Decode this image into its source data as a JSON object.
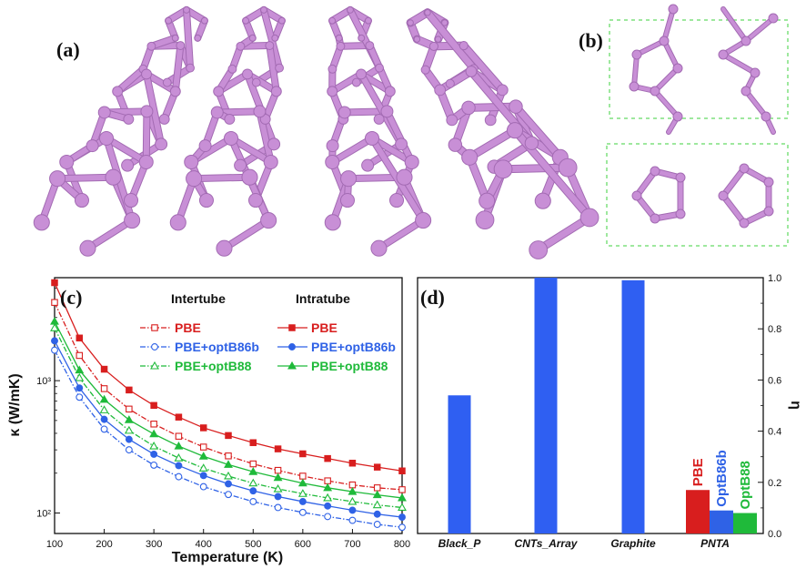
{
  "panels": {
    "a": "(a)",
    "b": "(b)",
    "c": "(c)",
    "d": "(d)"
  },
  "colors": {
    "molecule": "#c88fd6",
    "molecule_dark": "#a36bb3",
    "dashed_box": "#7fe07f",
    "red": "#d81e1e",
    "blue": "#2f62e6",
    "green": "#1fba3a",
    "bar_blue": "#2f5ff2"
  },
  "chart_data": [
    {
      "type": "line",
      "panel": "(c)",
      "xlabel": "Temperature (K)",
      "ylabel": "κ (W/mK)",
      "yscale": "log",
      "xlim": [
        100,
        800
      ],
      "ylim": [
        70,
        6000
      ],
      "xticks": [
        100,
        200,
        300,
        400,
        500,
        600,
        700,
        800
      ],
      "yticks": [
        {
          "value": 100,
          "label": "10²"
        },
        {
          "value": 1000,
          "label": "10³"
        }
      ],
      "legend_headers": [
        "Intertube",
        "Intratube"
      ],
      "x": [
        100,
        150,
        200,
        250,
        300,
        350,
        400,
        450,
        500,
        550,
        600,
        650,
        700,
        750,
        800
      ],
      "series": [
        {
          "name": "PBE",
          "group": "Intertube",
          "color": "#d81e1e",
          "style": "dashdot",
          "marker": "square-open",
          "values": [
            3900,
            1550,
            870,
            610,
            470,
            380,
            315,
            270,
            235,
            210,
            190,
            175,
            163,
            155,
            150
          ]
        },
        {
          "name": "PBE+optB86b",
          "group": "Intertube",
          "color": "#2f62e6",
          "style": "dashdot",
          "marker": "circle-open",
          "values": [
            1700,
            750,
            430,
            300,
            230,
            188,
            158,
            138,
            122,
            110,
            101,
            94,
            88,
            82,
            78
          ]
        },
        {
          "name": "PBE+optB88",
          "group": "Intertube",
          "color": "#1fba3a",
          "style": "dashdot",
          "marker": "triangle-open",
          "values": [
            2500,
            1050,
            600,
            420,
            320,
            260,
            218,
            190,
            168,
            152,
            140,
            130,
            122,
            115,
            110
          ]
        },
        {
          "name": "PBE",
          "group": "Intratube",
          "color": "#d81e1e",
          "style": "solid",
          "marker": "square-filled",
          "values": [
            5500,
            2100,
            1220,
            850,
            650,
            530,
            440,
            385,
            340,
            305,
            280,
            258,
            238,
            222,
            208
          ]
        },
        {
          "name": "PBE+optB86b",
          "group": "Intratube",
          "color": "#2f62e6",
          "style": "solid",
          "marker": "circle-filled",
          "values": [
            2000,
            880,
            510,
            360,
            278,
            228,
            192,
            166,
            147,
            133,
            122,
            113,
            105,
            98,
            93
          ]
        },
        {
          "name": "PBE+optB88",
          "group": "Intratube",
          "color": "#1fba3a",
          "style": "solid",
          "marker": "triangle-filled",
          "values": [
            2800,
            1200,
            720,
            505,
            395,
            320,
            268,
            232,
            205,
            185,
            168,
            155,
            145,
            137,
            130
          ]
        }
      ]
    },
    {
      "type": "bar",
      "panel": "(d)",
      "ylabel": "η",
      "ylim": [
        0,
        1
      ],
      "yticks": [
        "0.0",
        "0.2",
        "0.4",
        "0.6",
        "0.8",
        "1.0"
      ],
      "yaxis_side": "right",
      "categories": [
        "Black_P",
        "CNTs_Array",
        "Graphite",
        "PNTA"
      ],
      "values": [
        0.54,
        1.0,
        0.99,
        null
      ],
      "bar_color": "#2f5ff2",
      "pnta_bars": [
        {
          "label": "PBE",
          "value": 0.17,
          "color": "#d81e1e"
        },
        {
          "label": "OptB86b",
          "value": 0.09,
          "color": "#2f62e6"
        },
        {
          "label": "OptB88",
          "value": 0.08,
          "color": "#1fba3a"
        }
      ]
    }
  ]
}
